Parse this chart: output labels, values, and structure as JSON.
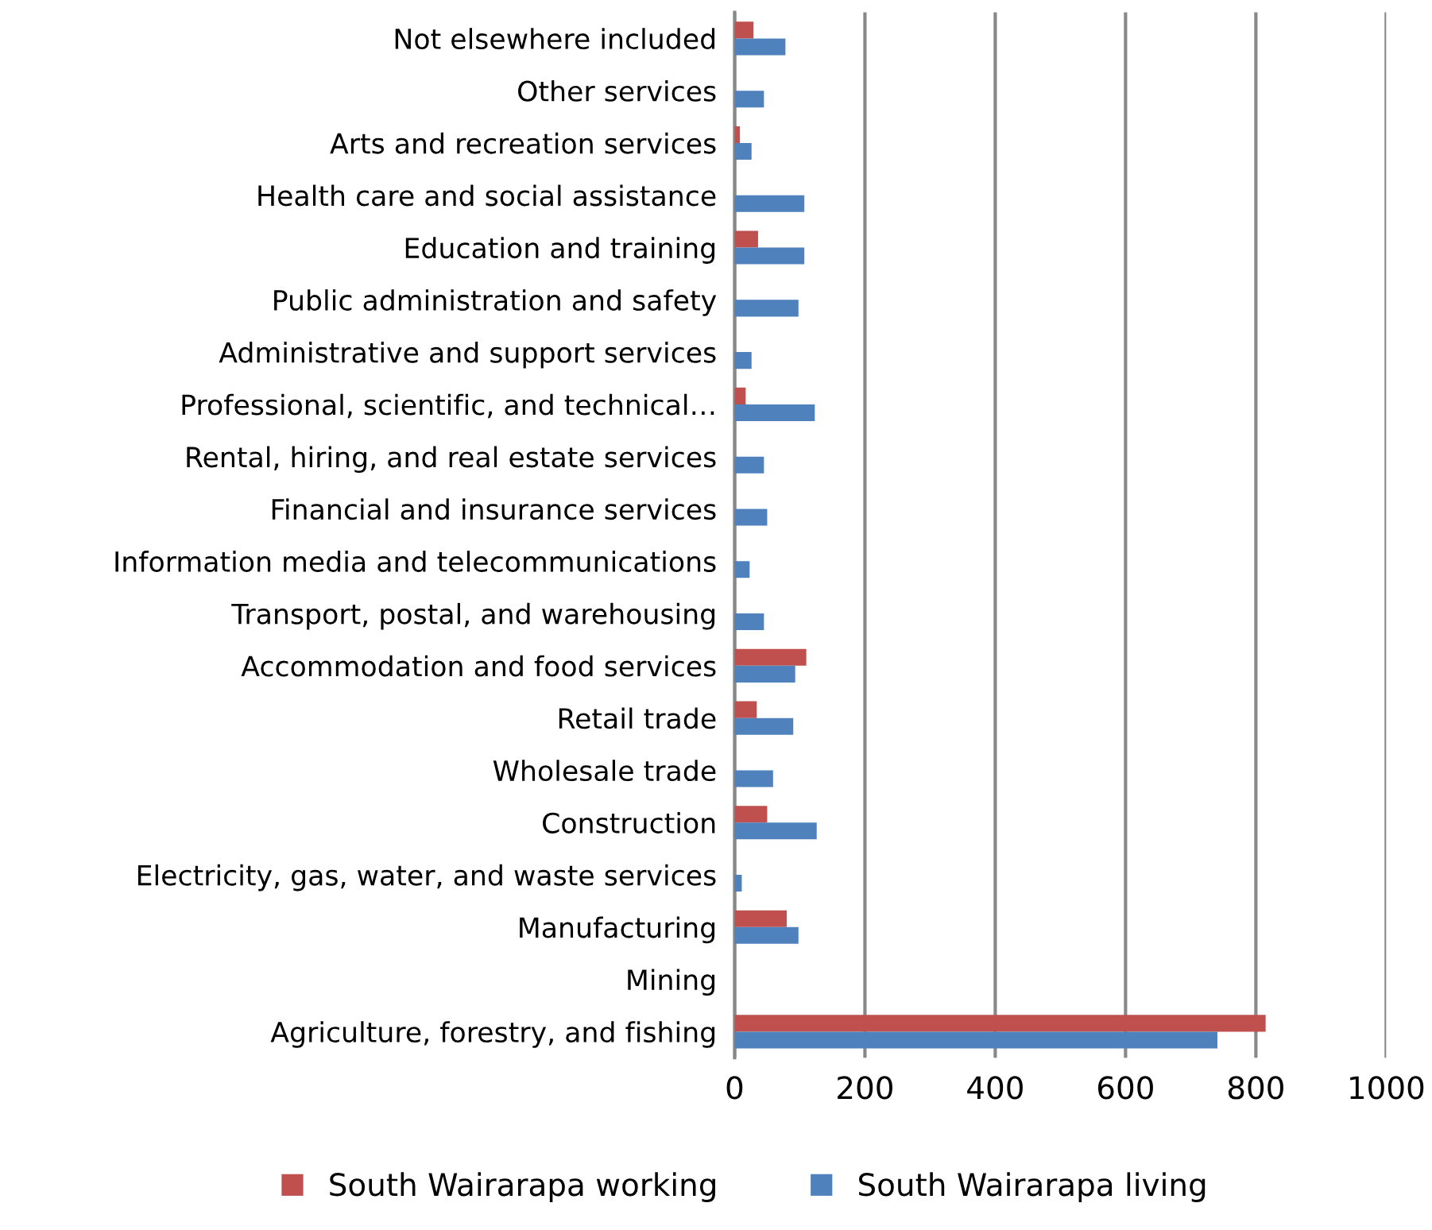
{
  "chart_data": {
    "type": "bar",
    "orientation": "horizontal",
    "categories": [
      "Not elsewhere included",
      "Other services",
      "Arts and recreation services",
      "Health care and social assistance",
      "Education and training",
      "Public administration and safety",
      "Administrative and support services",
      "Professional, scientific, and technical…",
      "Rental, hiring, and real estate services",
      "Financial and insurance services",
      "Information media and telecommunications",
      "Transport, postal, and warehousing",
      "Accommodation and food services",
      "Retail trade",
      "Wholesale trade",
      "Construction",
      "Electricity, gas, water, and waste services",
      "Manufacturing",
      "Mining",
      "Agriculture, forestry, and fishing"
    ],
    "series": [
      {
        "name": "South Wairarapa working",
        "color": "#c0504d",
        "values": [
          29,
          0,
          8,
          0,
          36,
          0,
          0,
          17,
          0,
          0,
          0,
          0,
          110,
          34,
          0,
          50,
          0,
          80,
          0,
          815
        ]
      },
      {
        "name": "South Wairarapa living",
        "color": "#4f81bd",
        "values": [
          78,
          45,
          26,
          107,
          107,
          98,
          26,
          123,
          45,
          50,
          23,
          45,
          93,
          90,
          59,
          126,
          11,
          98,
          0,
          741
        ]
      }
    ],
    "xlim": [
      0,
      1000
    ],
    "xticks": [
      0,
      200,
      400,
      600,
      800,
      1000
    ],
    "grid": "x",
    "legend": "bottom"
  }
}
